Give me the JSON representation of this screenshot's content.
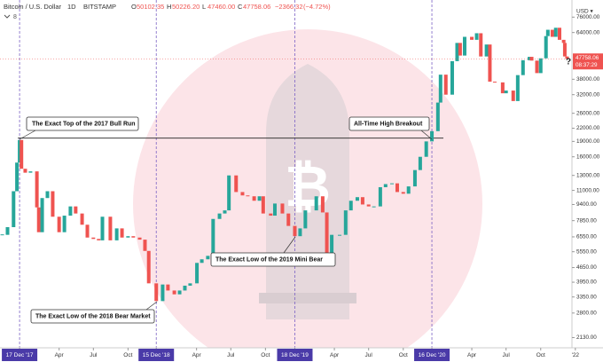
{
  "chart_data": {
    "type": "candlestick",
    "title": "Bitcoin / U.S. Dollar",
    "interval": "1D",
    "exchange": "BITSTAMP",
    "indicator_count": "8",
    "ohlc_legend": [
      {
        "key": "O",
        "value": 50102.35,
        "label": "50102.35"
      },
      {
        "key": "H",
        "value": 50226.2,
        "label": "50226.20"
      },
      {
        "key": "L",
        "value": 47460,
        "label": "47460.00"
      },
      {
        "key": "C",
        "value": 47758.06,
        "label": "47758.06"
      }
    ],
    "change": {
      "value": -2366.32,
      "label": "−2366.32"
    },
    "change_pct": {
      "value": -4.72,
      "label": "(−4.72%)"
    },
    "currency": "USD ▾",
    "last_price": {
      "value": 47758.06,
      "label": "47758.06"
    },
    "countdown": "08:37:29",
    "help": "?",
    "log_scale": true,
    "up_color": "#26a69a",
    "down_color": "#ef5350",
    "xlim": [
      "2017-10-26",
      "2021-12-23"
    ],
    "xticks": [
      {
        "value": "2017-12-17",
        "label": "17 Dec '17",
        "highlight": true
      },
      {
        "value": "2018-04-01",
        "label": "Apr"
      },
      {
        "value": "2018-07-01",
        "label": "Jul"
      },
      {
        "value": "2018-10-01",
        "label": "Oct"
      },
      {
        "value": "2018-12-15",
        "label": "15 Dec '18",
        "highlight": true
      },
      {
        "value": "2019-04-01",
        "label": "Apr"
      },
      {
        "value": "2019-07-01",
        "label": "Jul"
      },
      {
        "value": "2019-10-01",
        "label": "Oct"
      },
      {
        "value": "2019-12-18",
        "label": "18 Dec '19",
        "highlight": true
      },
      {
        "value": "2020-04-01",
        "label": "Apr"
      },
      {
        "value": "2020-07-01",
        "label": "Jul"
      },
      {
        "value": "2020-10-01",
        "label": "Oct"
      },
      {
        "value": "2020-12-16",
        "label": "16 Dec '20",
        "highlight": true
      },
      {
        "value": "2021-04-01",
        "label": "Apr"
      },
      {
        "value": "2021-07-01",
        "label": "Jul"
      },
      {
        "value": "2021-10-01",
        "label": "Oct"
      },
      {
        "value": "2022-01-01",
        "label": "'22"
      }
    ],
    "ylim": [
      1900,
      92000
    ],
    "yticks": [
      {
        "value": 76000,
        "label": "76000.00"
      },
      {
        "value": 64000,
        "label": "64000.00"
      },
      {
        "value": 38000,
        "label": "38000.00"
      },
      {
        "value": 32000,
        "label": "32000.00"
      },
      {
        "value": 26000,
        "label": "26000.00"
      },
      {
        "value": 22000,
        "label": "22000.00"
      },
      {
        "value": 19000,
        "label": "19000.00"
      },
      {
        "value": 16000,
        "label": "16000.00"
      },
      {
        "value": 13000,
        "label": "13000.00"
      },
      {
        "value": 11000,
        "label": "11000.00"
      },
      {
        "value": 9400,
        "label": "9400.00"
      },
      {
        "value": 7850,
        "label": "7850.00"
      },
      {
        "value": 6550,
        "label": "6550.00"
      },
      {
        "value": 5550,
        "label": "5550.00"
      },
      {
        "value": 4650,
        "label": "4650.00"
      },
      {
        "value": 3950,
        "label": "3950.00"
      },
      {
        "value": 3350,
        "label": "3350.00"
      },
      {
        "value": 2800,
        "label": "2800.00"
      },
      {
        "value": 2130,
        "label": "2130.00"
      }
    ],
    "hline": 19700,
    "annotations": [
      "The Exact Top of the 2017 Bull Run",
      "All-Time High Breakout",
      "The Exact Low of the 2019 Mini Bear",
      "The Exact Low of the 2018 Bear Market"
    ],
    "x": [
      "2017-11-01",
      "2017-11-15",
      "2017-12-01",
      "2017-12-10",
      "2017-12-17",
      "2017-12-22",
      "2018-01-01",
      "2018-01-15",
      "2018-02-01",
      "2018-02-06",
      "2018-02-15",
      "2018-03-01",
      "2018-03-15",
      "2018-04-01",
      "2018-04-15",
      "2018-05-01",
      "2018-05-15",
      "2018-06-01",
      "2018-06-15",
      "2018-07-01",
      "2018-07-15",
      "2018-07-25",
      "2018-08-15",
      "2018-09-01",
      "2018-09-15",
      "2018-10-01",
      "2018-10-15",
      "2018-11-01",
      "2018-11-15",
      "2018-11-25",
      "2018-12-15",
      "2019-01-01",
      "2019-01-15",
      "2019-02-01",
      "2019-02-15",
      "2019-03-01",
      "2019-03-15",
      "2019-04-02",
      "2019-04-15",
      "2019-05-01",
      "2019-05-15",
      "2019-06-01",
      "2019-06-15",
      "2019-06-26",
      "2019-07-15",
      "2019-08-01",
      "2019-08-15",
      "2019-09-01",
      "2019-09-15",
      "2019-09-25",
      "2019-10-15",
      "2019-10-26",
      "2019-11-15",
      "2019-12-01",
      "2019-12-18",
      "2020-01-01",
      "2020-01-15",
      "2020-02-13",
      "2020-03-01",
      "2020-03-12",
      "2020-03-25",
      "2020-04-15",
      "2020-05-01",
      "2020-05-15",
      "2020-06-01",
      "2020-06-15",
      "2020-07-01",
      "2020-07-15",
      "2020-08-01",
      "2020-08-15",
      "2020-09-01",
      "2020-09-15",
      "2020-10-01",
      "2020-10-15",
      "2020-11-01",
      "2020-11-15",
      "2020-12-01",
      "2020-12-16",
      "2021-01-01",
      "2021-01-08",
      "2021-01-22",
      "2021-02-08",
      "2021-02-21",
      "2021-03-01",
      "2021-03-13",
      "2021-04-01",
      "2021-04-14",
      "2021-04-25",
      "2021-05-10",
      "2021-05-19",
      "2021-06-01",
      "2021-06-22",
      "2021-07-01",
      "2021-07-20",
      "2021-08-01",
      "2021-08-15",
      "2021-09-01",
      "2021-09-07",
      "2021-09-21",
      "2021-10-01",
      "2021-10-15",
      "2021-10-20",
      "2021-11-01",
      "2021-11-10",
      "2021-11-20",
      "2021-12-01",
      "2021-12-04",
      "2021-12-10"
    ],
    "series": [
      {
        "name": "BTCUSD",
        "values": [
          6700,
          7300,
          10900,
          15000,
          19300,
          14000,
          13400,
          13600,
          9100,
          6900,
          10100,
          10900,
          8200,
          6900,
          8300,
          9200,
          8500,
          7500,
          6500,
          6400,
          6300,
          8200,
          6300,
          7200,
          6500,
          6600,
          6500,
          6350,
          5600,
          3900,
          3200,
          3850,
          3600,
          3450,
          3600,
          3800,
          3900,
          4900,
          5100,
          5300,
          8000,
          8500,
          8800,
          13000,
          10800,
          10400,
          10300,
          9800,
          10300,
          8500,
          8300,
          9500,
          8500,
          7400,
          6600,
          7200,
          8800,
          10300,
          8600,
          4800,
          6700,
          6700,
          8800,
          9800,
          10200,
          9400,
          9200,
          9200,
          11400,
          11800,
          11900,
          10800,
          10600,
          11500,
          13800,
          16000,
          19000,
          21300,
          29300,
          40000,
          32000,
          46500,
          57000,
          49500,
          61000,
          59000,
          63500,
          49000,
          56000,
          37000,
          36700,
          32500,
          33500,
          29800,
          39800,
          47000,
          48800,
          46800,
          40700,
          48000,
          61500,
          66000,
          61000,
          67500,
          59000,
          57000,
          49000,
          47758.06
        ]
      }
    ]
  }
}
